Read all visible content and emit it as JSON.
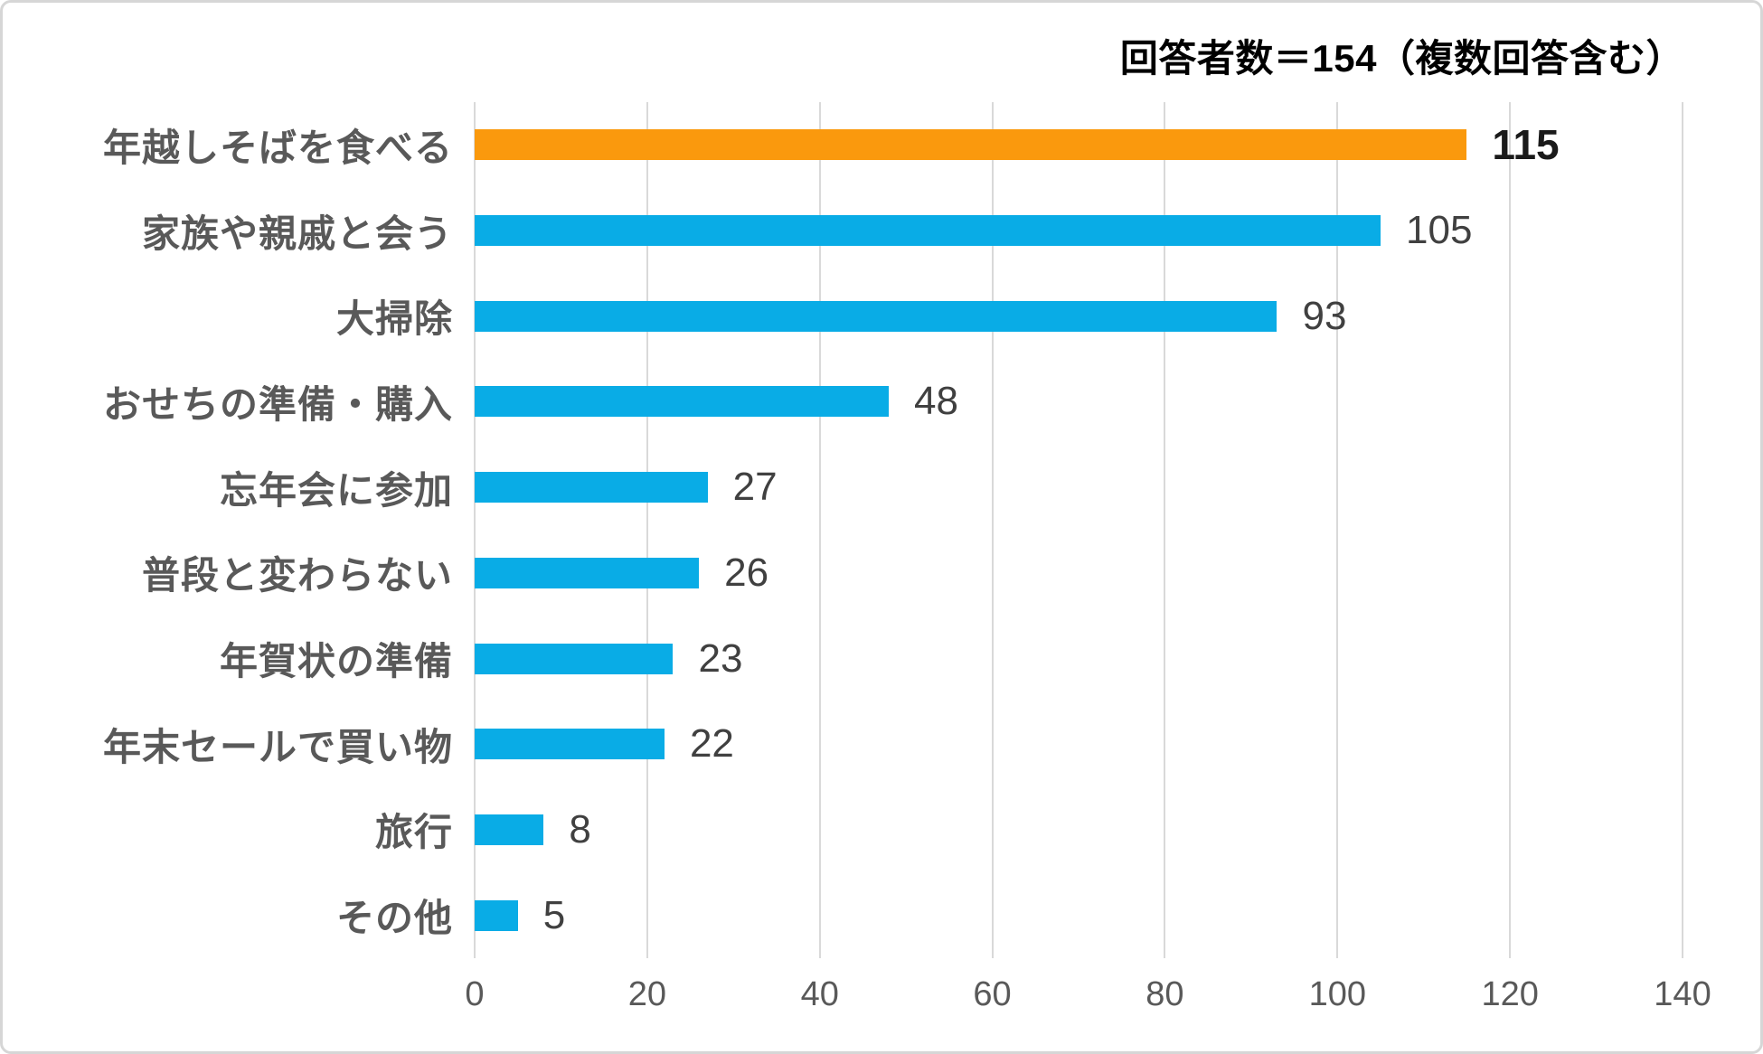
{
  "header": {
    "title": "回答者数＝154（複数回答含む）"
  },
  "colors": {
    "bar_blue": "#09ACE6",
    "bar_orange": "#FA990D",
    "grid": "#D9D9D9",
    "category_text": "#595959",
    "value_text": "#404040",
    "value_text_highlight": "#1A1A1A",
    "tick_text": "#595959",
    "frame_border": "#D6D6D6"
  },
  "chart_data": {
    "type": "bar",
    "orientation": "horizontal",
    "title": "回答者数＝154（複数回答含む）",
    "categories": [
      "年越しそばを食べる",
      "家族や親戚と会う",
      "大掃除",
      "おせちの準備・購入",
      "忘年会に参加",
      "普段と変わらない",
      "年賀状の準備",
      "年末セールで買い物",
      "旅行",
      "その他"
    ],
    "values": [
      115,
      105,
      93,
      48,
      27,
      26,
      23,
      22,
      8,
      5
    ],
    "highlight_index": 0,
    "xlabel": "",
    "ylabel": "",
    "xlim": [
      0,
      140
    ],
    "x_ticks": [
      0,
      20,
      40,
      60,
      80,
      100,
      120,
      140
    ],
    "grid": true,
    "legend": false,
    "value_labels": true
  }
}
